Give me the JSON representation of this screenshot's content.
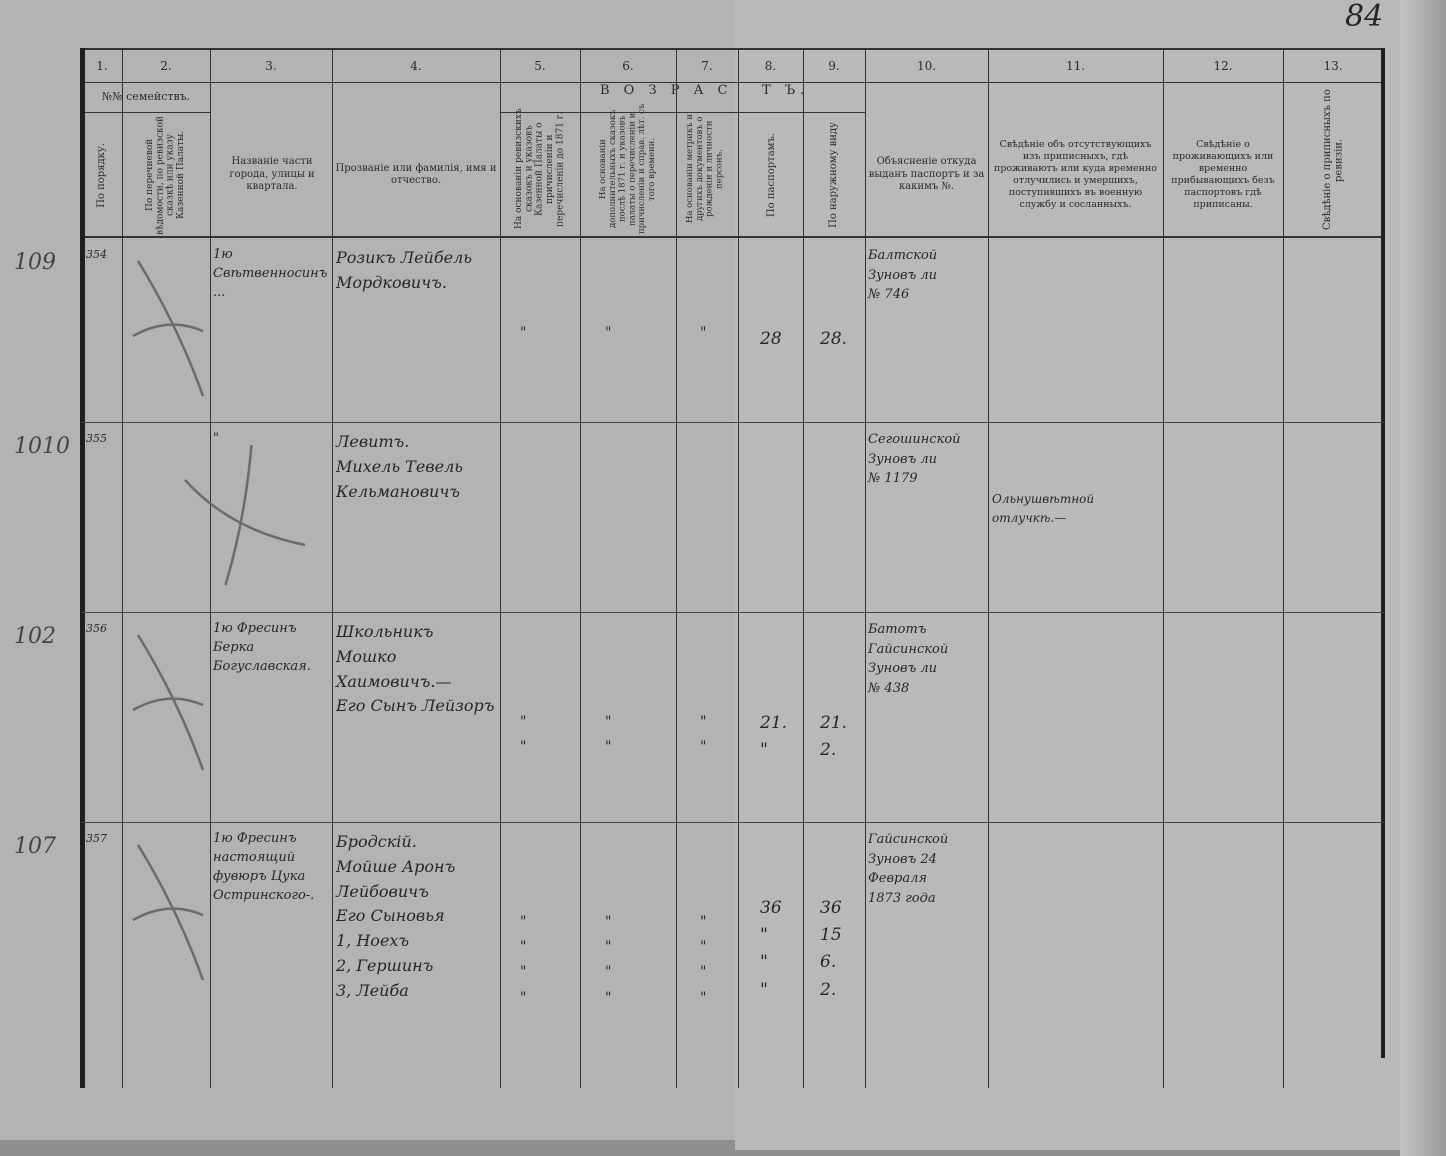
{
  "page_number": "84",
  "header": {
    "columns": [
      "1.",
      "2.",
      "3.",
      "4.",
      "5.",
      "6.",
      "7.",
      "8.",
      "9.",
      "10.",
      "11.",
      "12.",
      "13."
    ],
    "families_group": "№№ семействъ.",
    "age_group_left": "В О З Р А С",
    "age_group_right": "Т Ъ.",
    "col1": "По порядку.",
    "col2": "По перечневой вѣдомости, по ревизской сказкѣ или указу Казенной Палаты.",
    "col3": "Названіе части города, улицы и квартала.",
    "col4": "Прозваніе или фамилія, имя и отчество.",
    "col5": "На основаніи ревизскихъ сказокъ и указовъ Казенной Палаты о причисленіи и перечисленіи до 1871 г.",
    "col6": "На основаніи дополнительныхъ сказокъ послѣ 1871 г. и указовъ палаты о перечисленіи и причисленіи и справ. лѣт. съ того времени.",
    "col7": "На основаніи метрикъ и другихъ документовъ о рожденіи и личности персонъ.",
    "col8": "По паспортамъ.",
    "col9": "По наружному виду",
    "col10": "Объясненіе откуда выданъ паспортъ и за какимъ №.",
    "col11": "Свѣдѣніе объ отсутствующихъ изъ приписныхъ, гдѣ проживаютъ или куда временно отлучились и умершихъ, поступившихъ въ военную службу и сосланныхъ.",
    "col12": "Свѣдѣніе о проживающихъ или временно прибывающихъ безъ паспортовъ гдѣ приписаны.",
    "col13": "Свѣдѣніе о приписныхъ по ревизіи."
  },
  "rows": [
    {
      "margin": "109",
      "order": "354",
      "part": "1ю Свѣтвенносинъ...",
      "name": "Розикъ Лейбель Мордковичъ.",
      "c5": "\"",
      "c6": "\"",
      "c7": "\"",
      "c8": "28",
      "c9": "28.",
      "passport": "Балтской\nЗуновъ ли\n№ 746",
      "absent": ""
    },
    {
      "margin": "1010",
      "order": "355",
      "part": "\"",
      "name": "Левитъ.\nМихель Тевель\nКельмановичъ",
      "c5": "",
      "c6": "",
      "c7": "",
      "c8": "",
      "c9": "",
      "passport": "Сегошинской\nЗуновъ ли\n№ 1179",
      "absent": "Ольнушвѣтной отлучкѣ.—"
    },
    {
      "margin": "102",
      "order": "356",
      "part": "1ю Фресинъ Берка Богуславская.",
      "name": "Школьникъ\nМошко Хаимовичъ.—\nЕго Сынъ Лейзоръ",
      "c5": "\"\n\"",
      "c6": "\"\n\"",
      "c7": "\"\n\"",
      "c8": "21.\n\"",
      "c9": "21.\n2.",
      "passport": "Батотъ\nГайсинской\nЗуновъ ли\n№ 438",
      "absent": ""
    },
    {
      "margin": "107",
      "order": "357",
      "part": "1ю Фресинъ настоящий фувюръ Цука Остринского-.",
      "name": "Бродскій.\nМойше Аронъ\nЛейбовичъ\nЕго Сыновья\n1, Ноехъ\n2, Гершинъ\n3, Лейба",
      "c5": "\"\n\"\n\"\n\"",
      "c6": "\"\n\"\n\"\n\"",
      "c7": "\"\n\"\n\"\n\"",
      "c8": "36\n\"\n\"\n\"",
      "c9": "36\n15\n6.\n2.",
      "passport": "Гайсинской\nЗуновъ 24\nФевраля\n1873 года",
      "absent": ""
    }
  ]
}
